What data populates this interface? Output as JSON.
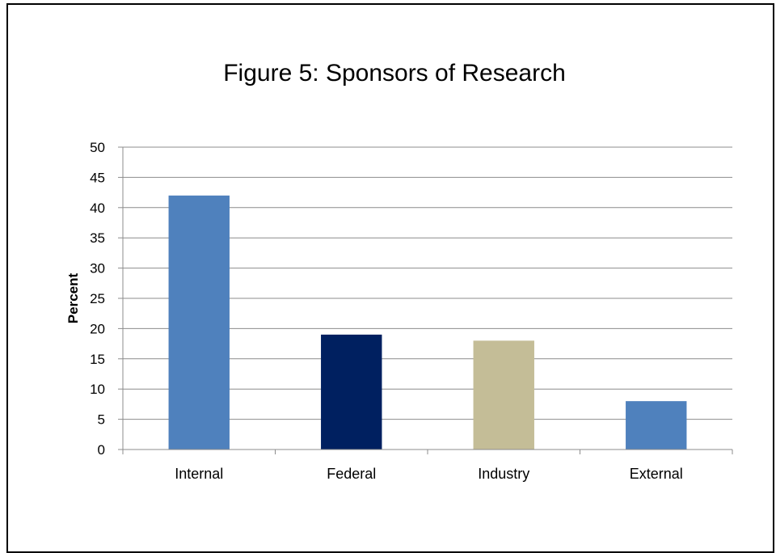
{
  "chart_data": {
    "type": "bar",
    "title": "Figure 5: Sponsors of Research",
    "xlabel": "",
    "ylabel": "Percent",
    "categories": [
      "Internal",
      "Federal",
      "Industry",
      "External"
    ],
    "values": [
      42,
      19,
      18,
      8
    ],
    "colors": [
      "#4f81bd",
      "#002060",
      "#c4bd97",
      "#4f81bd"
    ],
    "ylim": [
      0,
      50
    ],
    "yticks": [
      0,
      5,
      10,
      15,
      20,
      25,
      30,
      35,
      40,
      45,
      50
    ],
    "grid": true,
    "legend": "none"
  }
}
